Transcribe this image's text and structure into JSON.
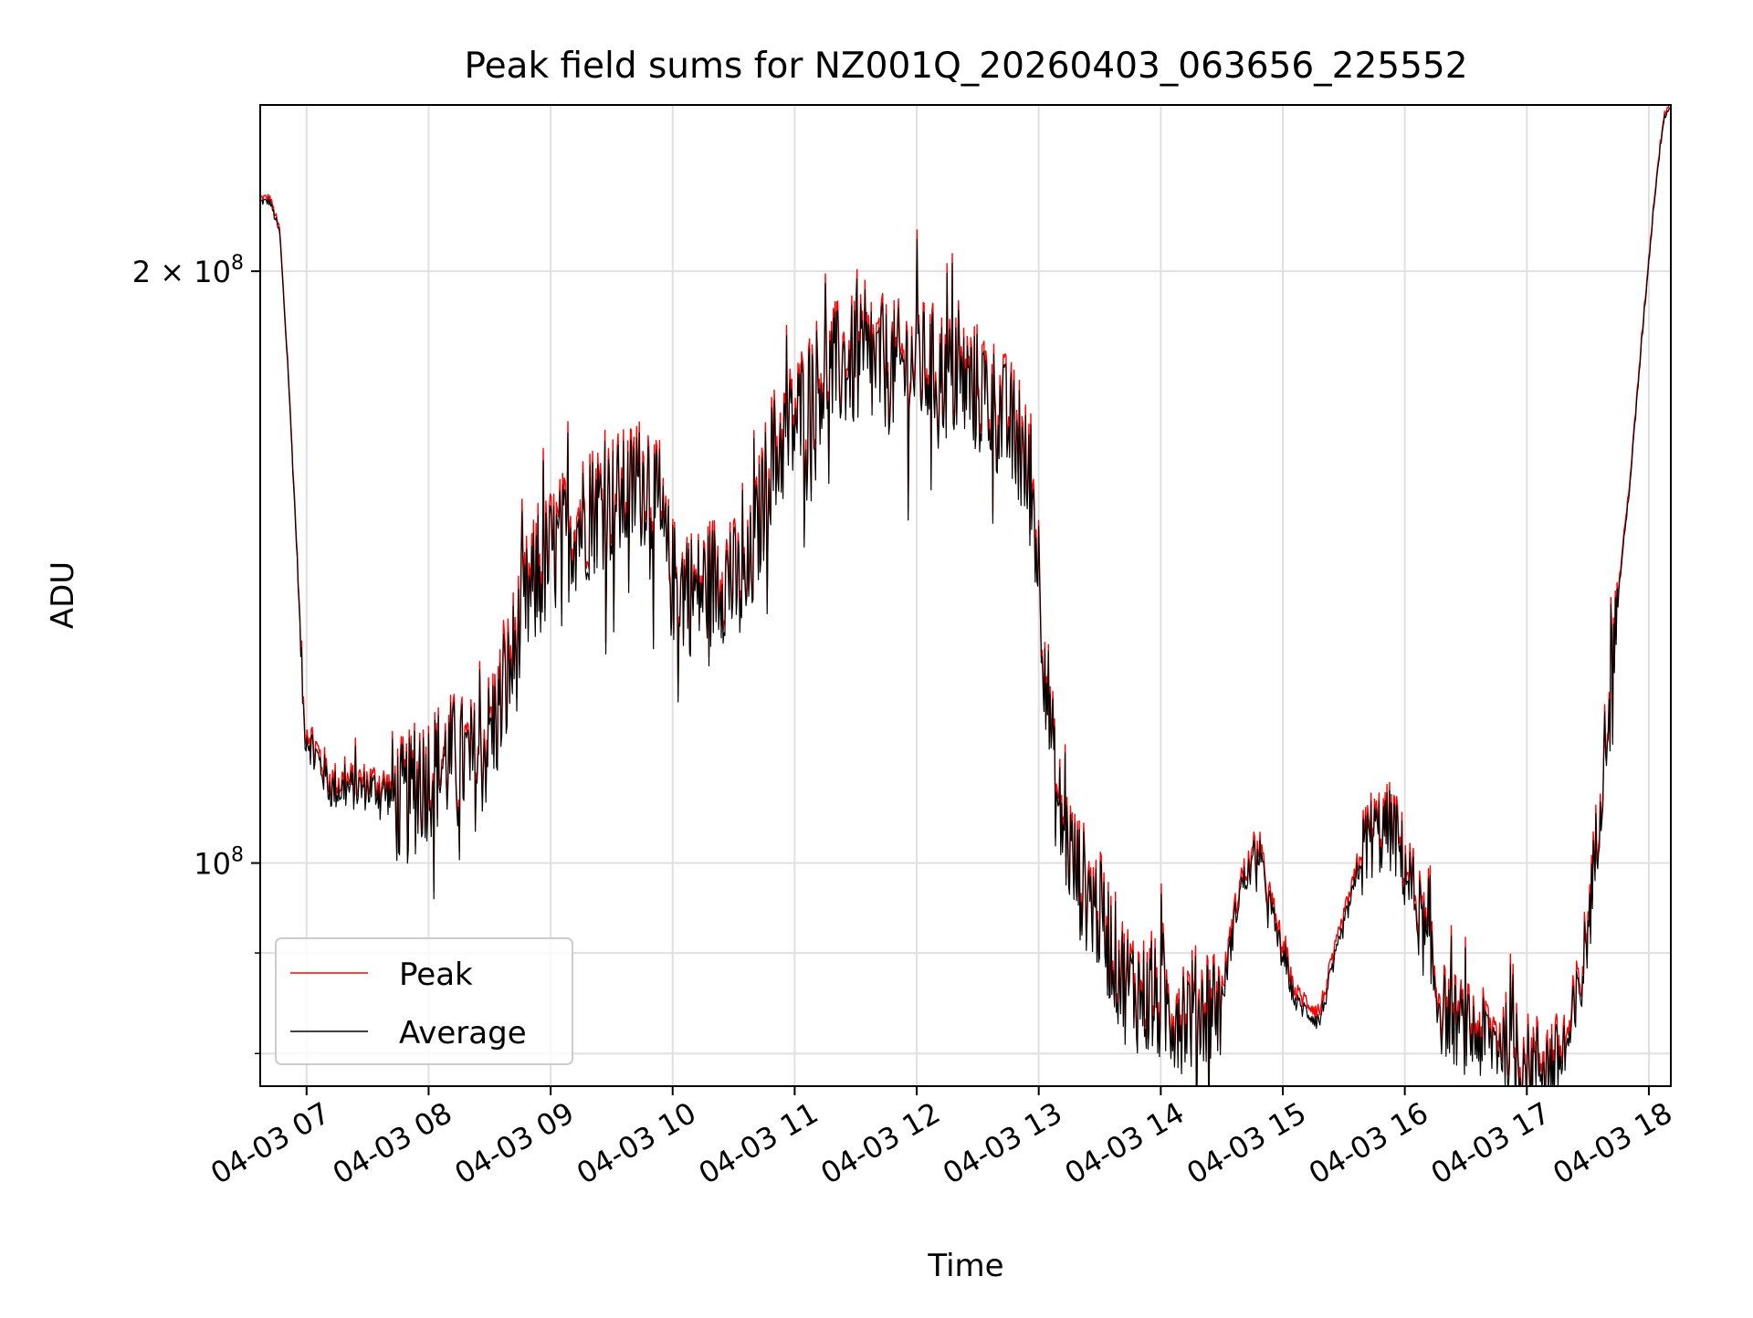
{
  "chart_data": {
    "type": "line",
    "title": "Peak field sums for NZ001Q_20260403_063656_225552",
    "xlabel": "Time",
    "ylabel": "ADU",
    "yscale": "log",
    "x_unit": "hours",
    "xlim": [
      6.62,
      18.18
    ],
    "ylim": [
      77000000,
      243000000
    ],
    "grid": true,
    "legend_position": "lower-left",
    "x_ticks": [
      {
        "value": 7,
        "label": "04-03 07"
      },
      {
        "value": 8,
        "label": "04-03 08"
      },
      {
        "value": 9,
        "label": "04-03 09"
      },
      {
        "value": 10,
        "label": "04-03 10"
      },
      {
        "value": 11,
        "label": "04-03 11"
      },
      {
        "value": 12,
        "label": "04-03 12"
      },
      {
        "value": 13,
        "label": "04-03 13"
      },
      {
        "value": 14,
        "label": "04-03 14"
      },
      {
        "value": 15,
        "label": "04-03 15"
      },
      {
        "value": 16,
        "label": "04-03 16"
      },
      {
        "value": 17,
        "label": "04-03 17"
      },
      {
        "value": 18,
        "label": "04-03 18"
      }
    ],
    "y_major_ticks": [
      {
        "value": 100000000,
        "mant": "10",
        "exp": "8"
      },
      {
        "value": 200000000,
        "mant": "2 × 10",
        "exp": "8"
      }
    ],
    "y_minor_ticks": [
      80000000,
      90000000
    ],
    "series": [
      {
        "name": "Peak",
        "color": "#ff0000",
        "x": [
          6.62,
          6.7,
          6.78,
          6.85,
          6.92,
          6.98,
          7.2,
          7.4,
          7.6,
          7.8,
          8.0,
          8.2,
          8.4,
          8.6,
          8.8,
          9.0,
          9.2,
          9.4,
          9.6,
          9.8,
          10.0,
          10.2,
          10.4,
          10.6,
          10.8,
          11.0,
          11.2,
          11.4,
          11.6,
          11.8,
          12.0,
          12.2,
          12.4,
          12.6,
          12.8,
          12.95,
          13.0,
          13.05,
          13.15,
          13.3,
          13.5,
          13.7,
          13.9,
          14.1,
          14.3,
          14.5,
          14.55,
          14.65,
          14.8,
          14.95,
          15.1,
          15.3,
          15.5,
          15.7,
          15.9,
          16.1,
          16.3,
          16.5,
          16.7,
          16.85,
          16.95,
          17.05,
          17.15,
          17.25,
          17.35,
          17.45,
          17.55,
          17.65,
          17.75,
          17.85,
          17.95,
          18.05,
          18.12,
          18.18
        ],
        "y": [
          218000000,
          218000000,
          210000000,
          178000000,
          145000000,
          118000000,
          110000000,
          110000000,
          110000000,
          108000000,
          112000000,
          114000000,
          113000000,
          122000000,
          137000000,
          145000000,
          150000000,
          154000000,
          155000000,
          159000000,
          140000000,
          138000000,
          142000000,
          138000000,
          162000000,
          169000000,
          178000000,
          181000000,
          181000000,
          180000000,
          181000000,
          179000000,
          177000000,
          174000000,
          167000000,
          156000000,
          142000000,
          128000000,
          108000000,
          100000000,
          95000000,
          88000000,
          86000000,
          85000000,
          85000000,
          86000000,
          90000000,
          98000000,
          102000000,
          93000000,
          86000000,
          84000000,
          94000000,
          104000000,
          105000000,
          96000000,
          85000000,
          83000000,
          82000000,
          82000000,
          80000000,
          80000000,
          80000000,
          80000000,
          82000000,
          88000000,
          100000000,
          118000000,
          138000000,
          158000000,
          188000000,
          220000000,
          240000000,
          244000000
        ]
      },
      {
        "name": "Average",
        "color": "#000000",
        "x": [
          6.62,
          6.7,
          6.78,
          6.85,
          6.92,
          6.98,
          7.2,
          7.4,
          7.6,
          7.8,
          8.0,
          8.2,
          8.4,
          8.6,
          8.8,
          9.0,
          9.2,
          9.4,
          9.6,
          9.8,
          10.0,
          10.2,
          10.4,
          10.6,
          10.8,
          11.0,
          11.2,
          11.4,
          11.6,
          11.8,
          12.0,
          12.2,
          12.4,
          12.6,
          12.8,
          12.95,
          13.0,
          13.05,
          13.15,
          13.3,
          13.5,
          13.7,
          13.9,
          14.1,
          14.3,
          14.5,
          14.55,
          14.65,
          14.8,
          14.95,
          15.1,
          15.3,
          15.5,
          15.7,
          15.9,
          16.1,
          16.3,
          16.5,
          16.7,
          16.85,
          16.95,
          17.05,
          17.15,
          17.25,
          17.35,
          17.45,
          17.55,
          17.65,
          17.75,
          17.85,
          17.95,
          18.05,
          18.12,
          18.18
        ],
        "y": [
          217000000,
          217000000,
          209000000,
          177000000,
          144000000,
          117000000,
          109000000,
          109000000,
          109000000,
          107000000,
          111000000,
          113000000,
          112000000,
          120000000,
          135000000,
          143000000,
          148000000,
          152000000,
          153000000,
          157000000,
          139000000,
          137000000,
          140000000,
          137000000,
          160000000,
          167000000,
          176000000,
          179000000,
          179000000,
          178000000,
          179000000,
          177000000,
          175000000,
          172000000,
          165000000,
          154000000,
          141000000,
          127000000,
          107000000,
          99000000,
          94000000,
          87000000,
          85000000,
          84000000,
          84000000,
          85000000,
          89000000,
          97000000,
          101000000,
          92000000,
          85000000,
          83000000,
          93000000,
          103000000,
          104000000,
          95000000,
          84000000,
          82000000,
          81000000,
          81000000,
          79000000,
          79000000,
          79000000,
          79000000,
          81000000,
          87000000,
          99000000,
          117000000,
          137000000,
          157000000,
          187000000,
          219000000,
          239000000,
          243000000
        ]
      }
    ]
  }
}
